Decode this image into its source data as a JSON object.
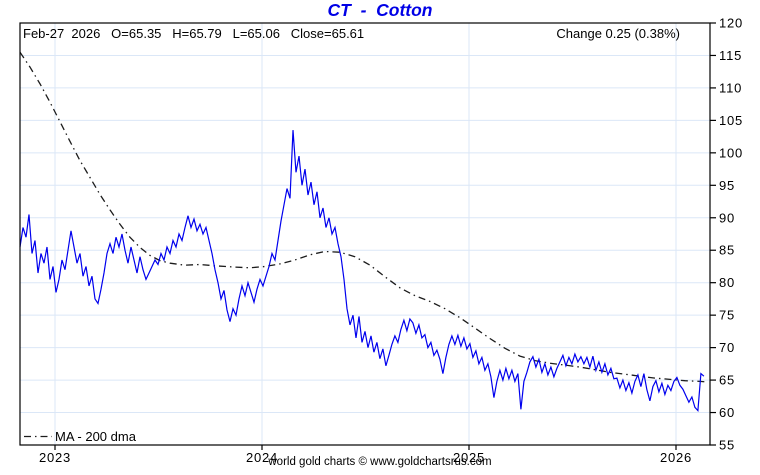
{
  "header": {
    "title": "CT  -  Cotton",
    "info_line": "Feb-27  2026   O=65.35   H=65.79   L=65.06   Close=65.61",
    "change_label": "Change 0.25 (0.38%)"
  },
  "legend": {
    "ma_label": "MA - 200 dma"
  },
  "footer": {
    "credit": "world gold charts © www.goldchartsrus.com"
  },
  "colors": {
    "price": "#0000ee",
    "ma": "#1c1c1c",
    "grid": "#dbe7f7",
    "frame": "#000000",
    "title": "#0000e6",
    "text": "#000000",
    "background": "#ffffff"
  },
  "chart_data": {
    "type": "line",
    "title": "CT - Cotton",
    "symbol": "CT",
    "ohlc": {
      "date": "Feb-27 2026",
      "open": 65.35,
      "high": 65.79,
      "low": 65.06,
      "close": 65.61,
      "change": "0.25",
      "change_pct": "0.38%"
    },
    "x_axis": {
      "tick_labels": [
        "2023",
        "2024",
        "2025",
        "2026"
      ],
      "tick_years": [
        2023,
        2024,
        2025,
        2026
      ],
      "start_year": 2022.831,
      "end_year": 2026.165
    },
    "y_axis": {
      "min": 55,
      "max": 120,
      "tick_step": 5,
      "side": "right",
      "ticks": [
        120,
        115,
        110,
        105,
        100,
        95,
        90,
        85,
        80,
        75,
        70,
        65,
        60,
        55
      ]
    },
    "grid": true,
    "legend_position": "bottom-left",
    "series": [
      {
        "name": "CT daily price",
        "style": "solid",
        "color_key": "price",
        "x_start_year": 2022.831,
        "x_step_year": 0.01449,
        "values": [
          85.5,
          88.5,
          87,
          90.5,
          84.5,
          86.5,
          81.5,
          84.5,
          83,
          85.5,
          80.5,
          82.5,
          78.5,
          80.5,
          83.5,
          82,
          85,
          88,
          85.5,
          83,
          84.5,
          81,
          82.5,
          79.5,
          81,
          77.5,
          76.8,
          79,
          81.5,
          84.5,
          86,
          84.5,
          87,
          85.5,
          87.5,
          85,
          83,
          85.5,
          83.5,
          81.5,
          84,
          82,
          80.5,
          81.5,
          82.5,
          83.5,
          82.8,
          84.5,
          83.5,
          85.5,
          84.5,
          86.5,
          85.5,
          87.5,
          86.5,
          88.5,
          90.3,
          88.5,
          89.8,
          88,
          89,
          87.5,
          88.5,
          86.5,
          84.5,
          82,
          80,
          77.5,
          78.8,
          75.8,
          74,
          76,
          75,
          77.5,
          79.5,
          78,
          80,
          78.5,
          77,
          79,
          80.5,
          79.5,
          81,
          82.5,
          84.5,
          83.5,
          86.5,
          89.5,
          92,
          94.5,
          93,
          103.5,
          97,
          99.5,
          95,
          97.5,
          93.5,
          95.5,
          92,
          94,
          90,
          91.5,
          88.5,
          90,
          87.5,
          88.5,
          86,
          84,
          80.5,
          76,
          73.5,
          75,
          71.5,
          74.8,
          70.8,
          72.5,
          70,
          71.8,
          69.3,
          70.8,
          68.3,
          69.8,
          67.2,
          68.8,
          70.5,
          71.8,
          70.8,
          72.8,
          74.2,
          72.6,
          74.4,
          73.8,
          72.2,
          73.5,
          71.5,
          72,
          70,
          70.8,
          68.8,
          69.6,
          68.2,
          66,
          68.5,
          70.5,
          71.8,
          70.5,
          71.9,
          70.2,
          71.5,
          69.8,
          70.6,
          68.5,
          69.5,
          67.5,
          68.5,
          66.5,
          67.5,
          65.5,
          62.3,
          64.8,
          66.5,
          65,
          66.8,
          65.2,
          66.5,
          64.8,
          66,
          60.5,
          64.8,
          66.2,
          67.8,
          68.6,
          67,
          68.2,
          66.2,
          67.5,
          65.8,
          67,
          65.5,
          66.8,
          67.8,
          68.8,
          67.2,
          68.5,
          67.5,
          69,
          67.8,
          68.6,
          67.5,
          68.5,
          67,
          68.7,
          66.5,
          67.8,
          66.2,
          67.5,
          65.8,
          66.8,
          65.2,
          65.3,
          63.8,
          65,
          63.4,
          64.6,
          63,
          64.8,
          65.8,
          64,
          66,
          63.5,
          61.8,
          64,
          64.9,
          63.2,
          64.5,
          62.8,
          64.2,
          63.4,
          64.8,
          65.4,
          64.2,
          63.6,
          62.6,
          61.6,
          62.4,
          60.8,
          60.3,
          66,
          65.6
        ]
      },
      {
        "name": "MA - 200 dma",
        "style": "dash-dot",
        "color_key": "ma",
        "points": [
          [
            2022.831,
            115.5
          ],
          [
            2022.879,
            113.2
          ],
          [
            2022.928,
            110.6
          ],
          [
            2022.976,
            107.8
          ],
          [
            2023.024,
            104.8
          ],
          [
            2023.072,
            101.8
          ],
          [
            2023.121,
            98.8
          ],
          [
            2023.169,
            96.2
          ],
          [
            2023.217,
            93.6
          ],
          [
            2023.266,
            91.2
          ],
          [
            2023.314,
            89.0
          ],
          [
            2023.362,
            87.0
          ],
          [
            2023.411,
            85.4
          ],
          [
            2023.459,
            84.2
          ],
          [
            2023.507,
            83.4
          ],
          [
            2023.556,
            83.0
          ],
          [
            2023.628,
            82.7
          ],
          [
            2023.7,
            82.8
          ],
          [
            2023.773,
            82.6
          ],
          [
            2023.87,
            82.4
          ],
          [
            2023.942,
            82.3
          ],
          [
            2024.014,
            82.5
          ],
          [
            2024.087,
            82.9
          ],
          [
            2024.159,
            83.5
          ],
          [
            2024.232,
            84.3
          ],
          [
            2024.304,
            84.8
          ],
          [
            2024.377,
            84.7
          ],
          [
            2024.449,
            84.0
          ],
          [
            2024.522,
            82.7
          ],
          [
            2024.594,
            80.9
          ],
          [
            2024.667,
            79.2
          ],
          [
            2024.739,
            78.0
          ],
          [
            2024.812,
            77.1
          ],
          [
            2024.884,
            76.0
          ],
          [
            2024.957,
            74.6
          ],
          [
            2025.029,
            73.0
          ],
          [
            2025.101,
            71.4
          ],
          [
            2025.174,
            69.9
          ],
          [
            2025.246,
            68.7
          ],
          [
            2025.319,
            68.0
          ],
          [
            2025.391,
            67.6
          ],
          [
            2025.464,
            67.3
          ],
          [
            2025.536,
            67.0
          ],
          [
            2025.609,
            66.6
          ],
          [
            2025.681,
            66.2
          ],
          [
            2025.754,
            65.9
          ],
          [
            2025.826,
            65.6
          ],
          [
            2025.899,
            65.3
          ],
          [
            2025.971,
            65.1
          ],
          [
            2026.043,
            64.9
          ],
          [
            2026.116,
            64.8
          ],
          [
            2026.155,
            64.7
          ]
        ]
      }
    ]
  }
}
